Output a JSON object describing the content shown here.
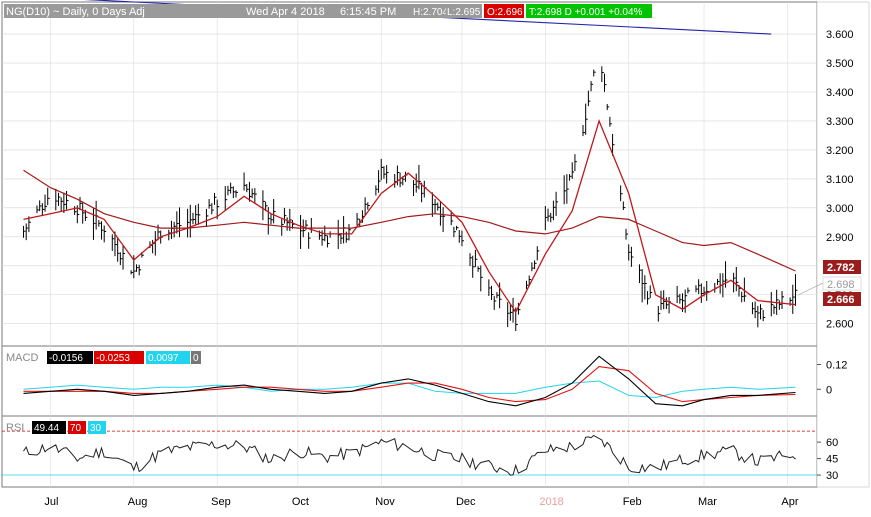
{
  "header": {
    "symbol": "NG(D10) ~ Daily, 0 Days Adj",
    "datetime": "Wed Apr 4 2018",
    "time": "6:15:45 PM",
    "high": "H:2.704",
    "low": "L:2.695",
    "open": "O:2.696",
    "close_change": "T:2.698 D +0.001 +0.04%"
  },
  "price_panel": {
    "y_ticks": [
      "3.600",
      "3.500",
      "3.400",
      "3.300",
      "3.200",
      "3.100",
      "3.000",
      "2.900",
      "2.800",
      "2.700",
      "2.600"
    ],
    "price_tags": [
      {
        "label": "2.782",
        "color": "#9b1c1c"
      },
      {
        "label": "2.698",
        "color": "#ffffff"
      },
      {
        "label": "2.666",
        "color": "#9b1c1c"
      }
    ]
  },
  "macd_panel": {
    "label": "MACD",
    "values": [
      {
        "text": "-0.0156",
        "bg": "#000000",
        "fg": "#ffffff"
      },
      {
        "text": "-0.0253",
        "bg": "#d90000",
        "fg": "#ffffff"
      },
      {
        "text": "0.0097",
        "bg": "#22d3ee",
        "fg": "#ffffff"
      },
      {
        "text": "0",
        "bg": "#777777",
        "fg": "#ffffff"
      }
    ],
    "y_ticks": [
      "0.12",
      "0"
    ]
  },
  "rsi_panel": {
    "label": "RSI",
    "values": [
      {
        "text": "49.44",
        "bg": "#000000",
        "fg": "#ffffff"
      },
      {
        "text": "70",
        "bg": "#d90000",
        "fg": "#ffffff"
      },
      {
        "text": "30",
        "bg": "#22d3ee",
        "fg": "#ffffff"
      }
    ],
    "y_ticks": [
      "60",
      "45",
      "30"
    ]
  },
  "x_axis": {
    "months": [
      "Jul",
      "Aug",
      "Sep",
      "Oct",
      "Nov",
      "Dec",
      "2018",
      "Feb",
      "Mar",
      "Apr"
    ]
  },
  "colors": {
    "price_bars": "#000000",
    "ma_short": "#c0181a",
    "ma_long": "#a31a1a",
    "trendline": "#2323a8",
    "macd_line": "#000000",
    "signal_line": "#e01515",
    "histogram_line": "#22d3ee",
    "rsi_line": "#222222",
    "rsi_70": "#d90000",
    "rsi_30": "#22d3ee",
    "year_label": "#e8a0a0"
  },
  "chart_data": {
    "type": "line",
    "title": "NG(D10) ~ Daily, 0 Days Adj",
    "x": [
      "2017-06-21",
      "2017-07-01",
      "2017-07-11",
      "2017-07-21",
      "2017-08-01",
      "2017-08-11",
      "2017-08-21",
      "2017-09-01",
      "2017-09-11",
      "2017-09-21",
      "2017-10-01",
      "2017-10-11",
      "2017-10-21",
      "2017-11-01",
      "2017-11-11",
      "2017-11-21",
      "2017-12-01",
      "2017-12-11",
      "2017-12-21",
      "2018-01-01",
      "2018-01-11",
      "2018-01-21",
      "2018-02-01",
      "2018-02-11",
      "2018-02-21",
      "2018-03-01",
      "2018-03-11",
      "2018-03-21",
      "2018-04-04"
    ],
    "series": [
      {
        "values": [
          2.92,
          3.05,
          3.0,
          2.93,
          2.78,
          2.92,
          2.95,
          3.02,
          3.08,
          2.97,
          2.93,
          2.9,
          2.92,
          3.12,
          3.1,
          3.02,
          2.9,
          2.7,
          2.62,
          2.95,
          3.1,
          3.55,
          2.85,
          2.65,
          2.68,
          2.72,
          2.76,
          2.63,
          2.698
        ]
      },
      {
        "values": [
          2.96,
          2.98,
          3.0,
          2.96,
          2.82,
          2.9,
          2.93,
          2.97,
          3.04,
          2.98,
          2.94,
          2.91,
          2.91,
          3.05,
          3.12,
          3.04,
          2.95,
          2.78,
          2.64,
          2.84,
          2.99,
          3.3,
          3.05,
          2.7,
          2.65,
          2.7,
          2.75,
          2.68,
          2.666
        ]
      },
      {
        "values": [
          3.13,
          3.07,
          3.03,
          2.98,
          2.95,
          2.93,
          2.93,
          2.94,
          2.95,
          2.94,
          2.93,
          2.93,
          2.93,
          2.95,
          2.97,
          2.98,
          2.97,
          2.95,
          2.92,
          2.91,
          2.93,
          2.97,
          2.96,
          2.92,
          2.88,
          2.87,
          2.88,
          2.84,
          2.782
        ]
      }
    ],
    "ylim": [
      2.53,
      3.69
    ],
    "xlabel": "",
    "ylabel": "",
    "trendline": {
      "from": [
        "2017-06-21",
        3.73
      ],
      "to": [
        "2018-03-26",
        3.6
      ]
    },
    "macd": {
      "values": [
        -0.02,
        -0.01,
        0.0,
        -0.01,
        -0.03,
        -0.02,
        -0.01,
        0.01,
        0.02,
        0.0,
        -0.01,
        -0.02,
        -0.01,
        0.03,
        0.05,
        0.02,
        -0.02,
        -0.06,
        -0.08,
        -0.04,
        0.03,
        0.16,
        0.05,
        -0.07,
        -0.08,
        -0.05,
        -0.03,
        -0.03,
        -0.0156
      ]
    },
    "signal": {
      "values": [
        -0.01,
        -0.01,
        -0.01,
        -0.01,
        -0.02,
        -0.02,
        -0.01,
        0.0,
        0.01,
        0.01,
        0.0,
        -0.01,
        -0.01,
        0.01,
        0.03,
        0.03,
        0.0,
        -0.04,
        -0.06,
        -0.05,
        0.0,
        0.11,
        0.09,
        -0.02,
        -0.06,
        -0.05,
        -0.04,
        -0.03,
        -0.0253
      ]
    },
    "macd_hist": {
      "values": [
        0.0,
        0.01,
        0.02,
        0.01,
        0.0,
        0.01,
        0.01,
        0.02,
        0.01,
        -0.01,
        0.0,
        0.0,
        0.01,
        0.03,
        0.03,
        -0.01,
        -0.02,
        -0.02,
        -0.02,
        0.01,
        0.03,
        0.04,
        -0.03,
        -0.04,
        -0.01,
        0.0,
        0.01,
        0.0,
        0.0097
      ]
    },
    "rsi": {
      "values": [
        50,
        56,
        45,
        52,
        36,
        50,
        55,
        58,
        56,
        44,
        52,
        46,
        50,
        60,
        56,
        48,
        44,
        38,
        34,
        52,
        56,
        64,
        38,
        36,
        44,
        48,
        52,
        42,
        49.44
      ]
    },
    "rsi_levels": [
      70,
      30
    ],
    "macd_ylim": [
      -0.12,
      0.2
    ],
    "rsi_ylim": [
      20,
      82
    ]
  }
}
